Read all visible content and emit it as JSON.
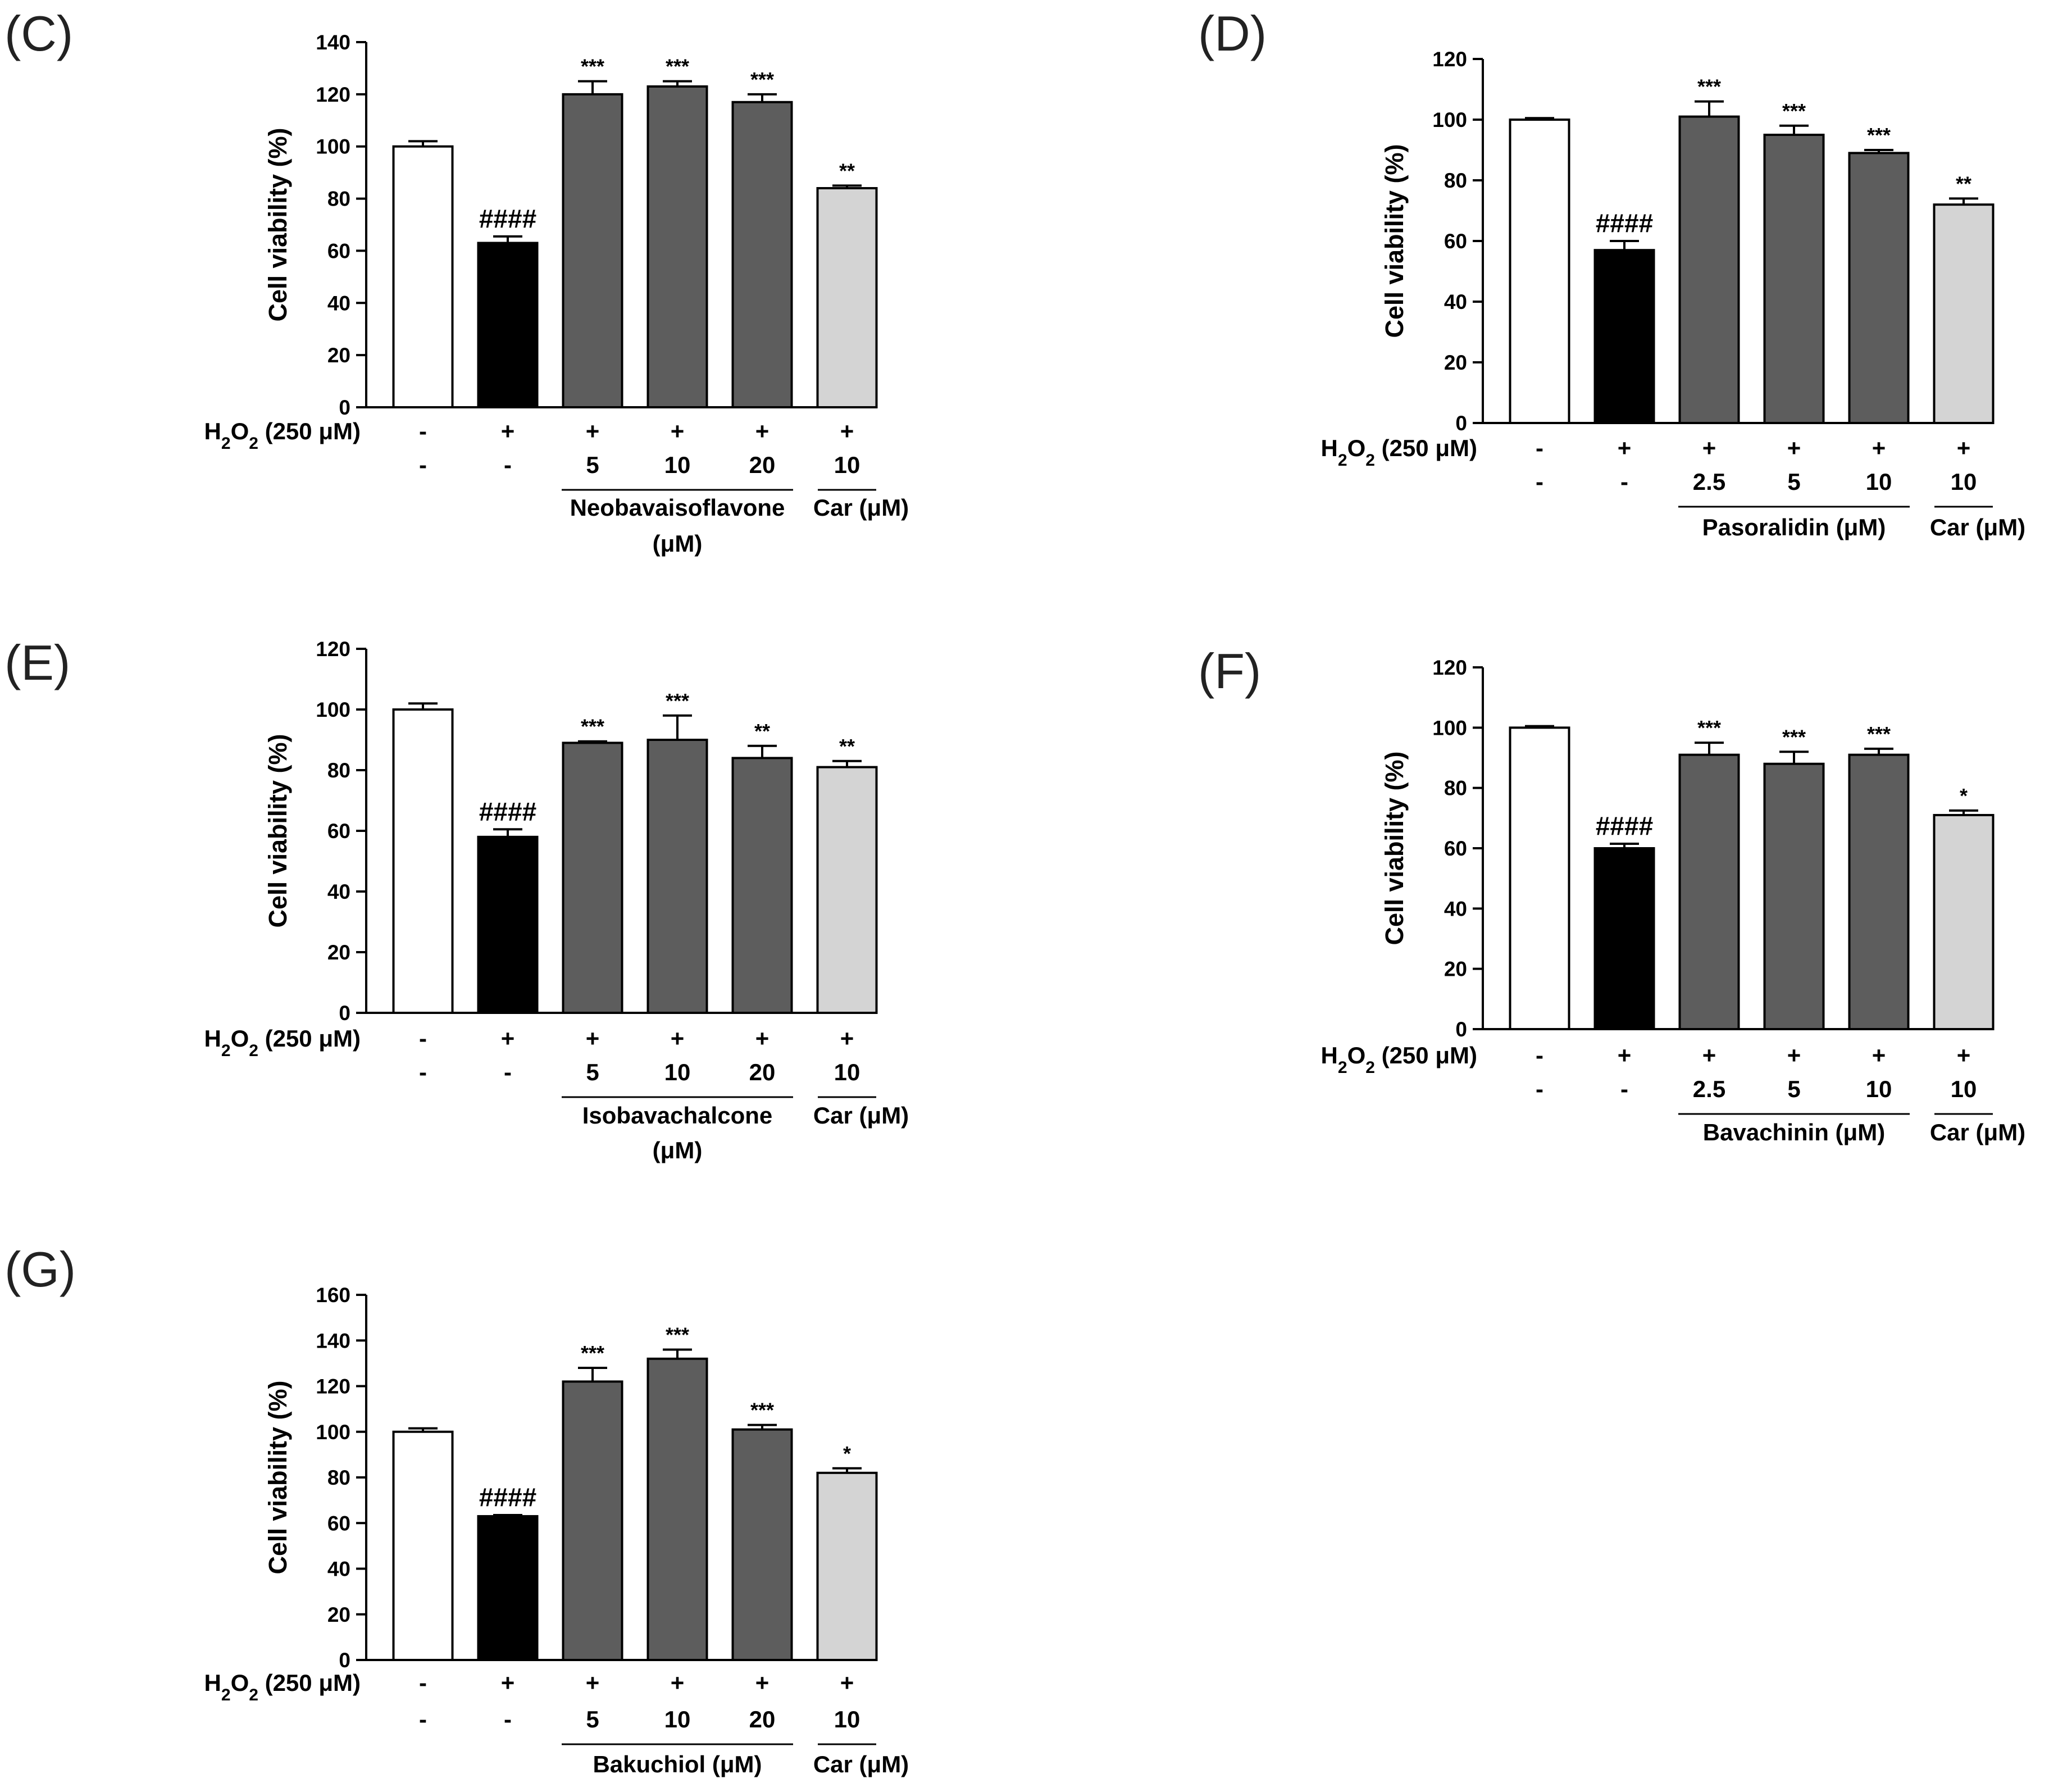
{
  "figure": {
    "treatment_row_label": "H2O2 (250 μM)",
    "treatment_row_label_base": "H",
    "treatment_row_label_sub1": "2",
    "treatment_row_label_mid": "O",
    "treatment_row_label_sub2": "2",
    "treatment_row_label_rest": " (250 μM)"
  },
  "colors": {
    "control": "#ffffff",
    "h2o2": "#000000",
    "compound": "#5d5d5d",
    "car": "#d4d4d4",
    "axis": "#000000"
  },
  "chart_data": [
    {
      "panel": "(C)",
      "type": "bar",
      "ylabel": "Cell viability (%)",
      "ylim": [
        0,
        140
      ],
      "yticks": [
        0,
        20,
        40,
        60,
        80,
        100,
        120,
        140
      ],
      "values": [
        100,
        63,
        120,
        123,
        117,
        84
      ],
      "errors": [
        2,
        2.5,
        5,
        2,
        3,
        1
      ],
      "annotations": [
        "",
        "####",
        "***",
        "***",
        "***",
        "**"
      ],
      "h2o2": [
        "-",
        "+",
        "+",
        "+",
        "+",
        "+"
      ],
      "dose": [
        "-",
        "-",
        "5",
        "10",
        "20",
        "10"
      ],
      "compound_label": [
        "Neobavaisoflavone",
        "(μM)"
      ],
      "car_label": "Car (μM)"
    },
    {
      "panel": "(D)",
      "type": "bar",
      "ylabel": "Cell viability (%)",
      "ylim": [
        0,
        120
      ],
      "yticks": [
        0,
        20,
        40,
        60,
        80,
        100,
        120
      ],
      "values": [
        100,
        57,
        101,
        95,
        89,
        72
      ],
      "errors": [
        0.5,
        3,
        5,
        3,
        1,
        2
      ],
      "annotations": [
        "",
        "####",
        "***",
        "***",
        "***",
        "**"
      ],
      "h2o2": [
        "-",
        "+",
        "+",
        "+",
        "+",
        "+"
      ],
      "dose": [
        "-",
        "-",
        "2.5",
        "5",
        "10",
        "10"
      ],
      "compound_label": [
        "Pasoralidin (μM)"
      ],
      "car_label": "Car (μM)"
    },
    {
      "panel": "(E)",
      "type": "bar",
      "ylabel": "Cell viability (%)",
      "ylim": [
        0,
        120
      ],
      "yticks": [
        0,
        20,
        40,
        60,
        80,
        100,
        120
      ],
      "values": [
        100,
        58,
        89,
        90,
        84,
        81
      ],
      "errors": [
        2,
        2.5,
        0.5,
        8,
        4,
        2
      ],
      "annotations": [
        "",
        "####",
        "***",
        "***",
        "**",
        "**"
      ],
      "h2o2": [
        "-",
        "+",
        "+",
        "+",
        "+",
        "+"
      ],
      "dose": [
        "-",
        "-",
        "5",
        "10",
        "20",
        "10"
      ],
      "compound_label": [
        "Isobavachalcone",
        "(μM)"
      ],
      "car_label": "Car (μM)"
    },
    {
      "panel": "(F)",
      "type": "bar",
      "ylabel": "Cell viability (%)",
      "ylim": [
        0,
        120
      ],
      "yticks": [
        0,
        20,
        40,
        60,
        80,
        100,
        120
      ],
      "values": [
        100,
        60,
        91,
        88,
        91,
        71
      ],
      "errors": [
        0.5,
        1.5,
        4,
        4,
        2,
        1.5
      ],
      "annotations": [
        "",
        "####",
        "***",
        "***",
        "***",
        "*"
      ],
      "h2o2": [
        "-",
        "+",
        "+",
        "+",
        "+",
        "+"
      ],
      "dose": [
        "-",
        "-",
        "2.5",
        "5",
        "10",
        "10"
      ],
      "compound_label": [
        "Bavachinin (μM)"
      ],
      "car_label": "Car (μM)"
    },
    {
      "panel": "(G)",
      "type": "bar",
      "ylabel": "Cell viability (%)",
      "ylim": [
        0,
        160
      ],
      "yticks": [
        0,
        20,
        40,
        60,
        80,
        100,
        120,
        140,
        160
      ],
      "values": [
        100,
        63,
        122,
        132,
        101,
        82
      ],
      "errors": [
        1.5,
        0.5,
        6,
        4,
        2,
        2
      ],
      "annotations": [
        "",
        "####",
        "***",
        "***",
        "***",
        "*"
      ],
      "h2o2": [
        "-",
        "+",
        "+",
        "+",
        "+",
        "+"
      ],
      "dose": [
        "-",
        "-",
        "5",
        "10",
        "20",
        "10"
      ],
      "compound_label": [
        "Bakuchiol (μM)"
      ],
      "car_label": "Car (μM)"
    }
  ]
}
